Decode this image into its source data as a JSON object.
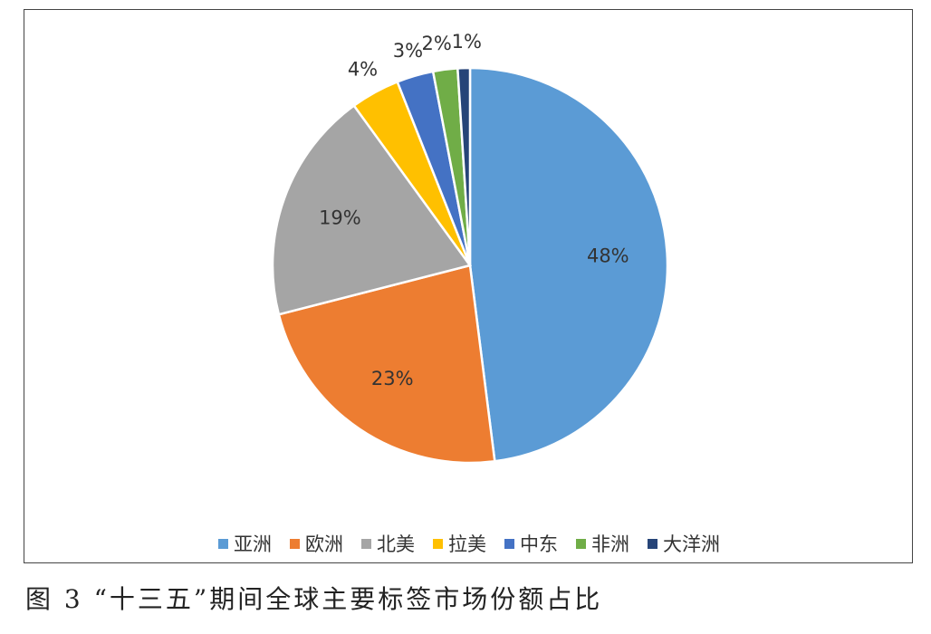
{
  "caption": "图 3 “十三五”期间全球主要标签市场份额占比",
  "chart_data": {
    "type": "pie",
    "title": "",
    "legend_position": "bottom",
    "slices": [
      {
        "name": "亚洲",
        "value": 48,
        "label": "48%",
        "color": "#5B9BD5"
      },
      {
        "name": "欧洲",
        "value": 23,
        "label": "23%",
        "color": "#ED7D31"
      },
      {
        "name": "北美",
        "value": 19,
        "label": "19%",
        "color": "#A5A5A5"
      },
      {
        "name": "拉美",
        "value": 4,
        "label": "4%",
        "color": "#FFC000"
      },
      {
        "name": "中东",
        "value": 3,
        "label": "3%",
        "color": "#4472C4"
      },
      {
        "name": "非洲",
        "value": 2,
        "label": "2%",
        "color": "#70AD47"
      },
      {
        "name": "大洋洲",
        "value": 1,
        "label": "1%",
        "color": "#264478"
      }
    ]
  }
}
